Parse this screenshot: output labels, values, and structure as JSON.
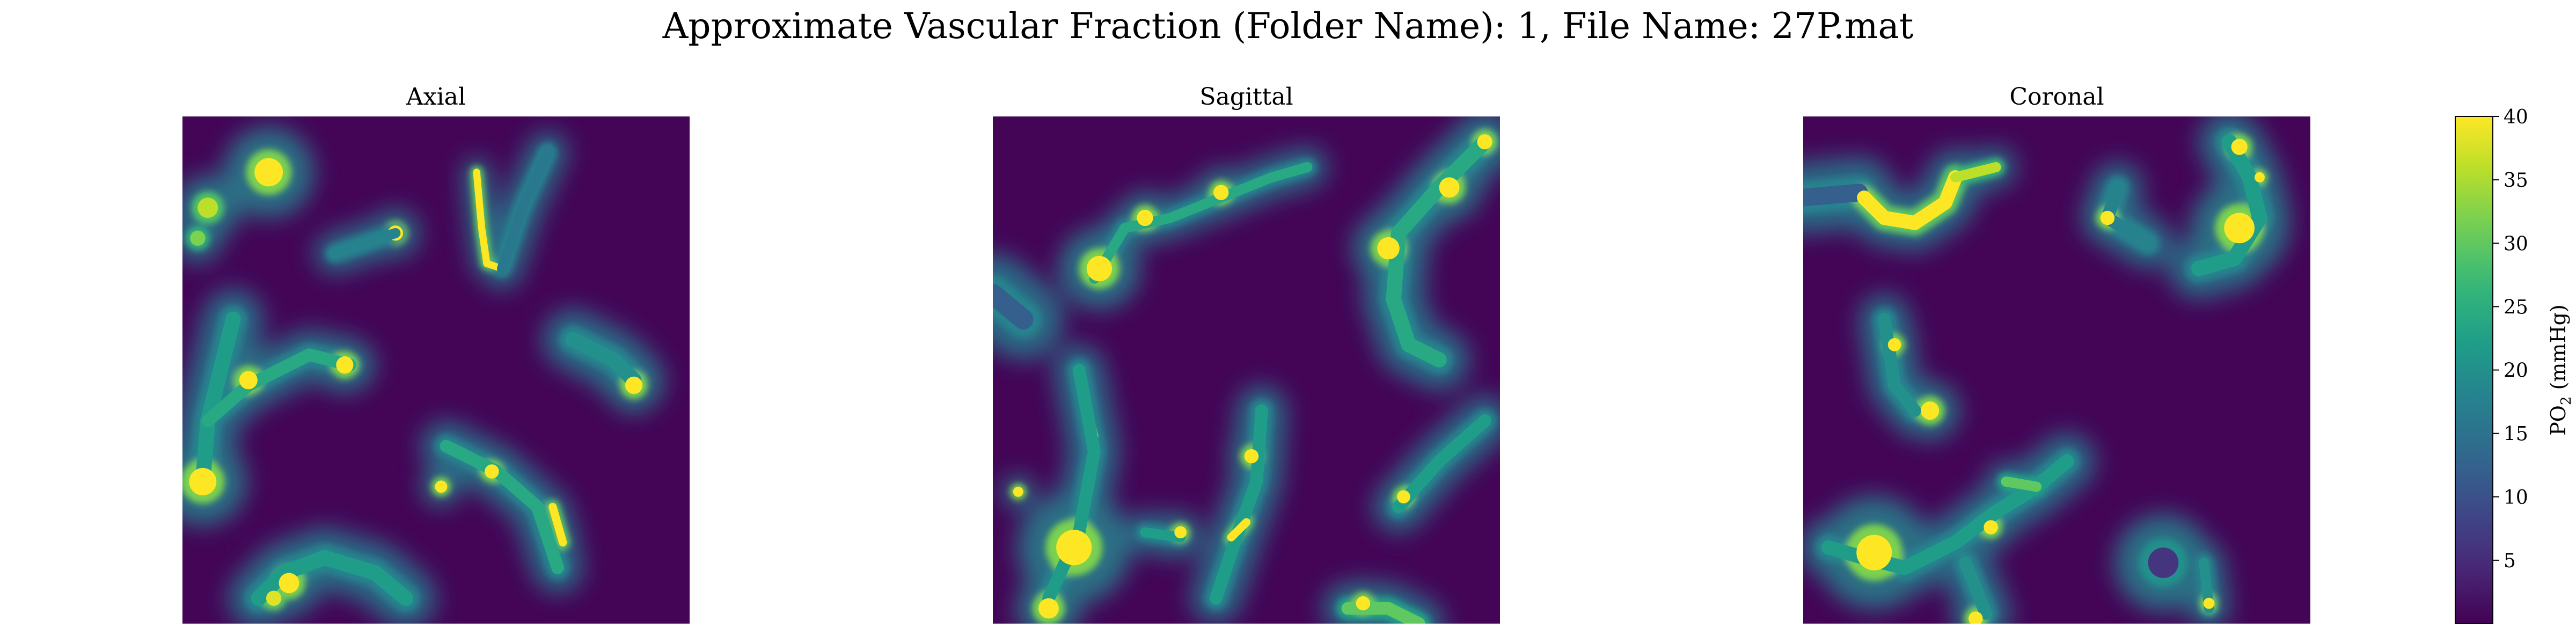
{
  "figure": {
    "suptitle": "Approximate Vascular Fraction (Folder Name): 1, File Name: 27P.mat"
  },
  "chart_data": {
    "type": "heatmap",
    "colormap": "viridis",
    "panels": [
      {
        "title": "Axial",
        "vessels": [
          {
            "type": "blob",
            "x": 0.17,
            "y": 0.11,
            "r": 0.028,
            "v": 40
          },
          {
            "type": "blob",
            "x": 0.05,
            "y": 0.18,
            "r": 0.02,
            "v": 36
          },
          {
            "type": "blob",
            "x": 0.03,
            "y": 0.24,
            "r": 0.015,
            "v": 32
          },
          {
            "type": "blob",
            "x": 0.42,
            "y": 0.23,
            "r": 0.015,
            "v": 40
          },
          {
            "type": "path",
            "pts": [
              [
                0.58,
                0.11
              ],
              [
                0.59,
                0.22
              ],
              [
                0.6,
                0.29
              ],
              [
                0.63,
                0.3
              ]
            ],
            "w": 0.014,
            "v": 40
          },
          {
            "type": "path",
            "pts": [
              [
                0.63,
                0.3
              ],
              [
                0.67,
                0.18
              ],
              [
                0.72,
                0.07
              ]
            ],
            "w": 0.02,
            "v": 16
          },
          {
            "type": "path",
            "pts": [
              [
                0.3,
                0.27
              ],
              [
                0.42,
                0.23
              ]
            ],
            "w": 0.02,
            "v": 18
          },
          {
            "type": "path",
            "pts": [
              [
                0.1,
                0.4
              ],
              [
                0.05,
                0.6
              ],
              [
                0.04,
                0.72
              ]
            ],
            "w": 0.03,
            "v": 22
          },
          {
            "type": "path",
            "pts": [
              [
                0.05,
                0.6
              ],
              [
                0.13,
                0.53
              ],
              [
                0.25,
                0.47
              ],
              [
                0.33,
                0.49
              ]
            ],
            "w": 0.025,
            "v": 24
          },
          {
            "type": "blob",
            "x": 0.13,
            "y": 0.52,
            "r": 0.018,
            "v": 40
          },
          {
            "type": "blob",
            "x": 0.32,
            "y": 0.49,
            "r": 0.017,
            "v": 40
          },
          {
            "type": "blob",
            "x": 0.04,
            "y": 0.72,
            "r": 0.027,
            "v": 40
          },
          {
            "type": "path",
            "pts": [
              [
                0.77,
                0.44
              ],
              [
                0.85,
                0.48
              ],
              [
                0.89,
                0.52
              ]
            ],
            "w": 0.03,
            "v": 20
          },
          {
            "type": "blob",
            "x": 0.89,
            "y": 0.53,
            "r": 0.017,
            "v": 40
          },
          {
            "type": "path",
            "pts": [
              [
                0.52,
                0.65
              ],
              [
                0.62,
                0.7
              ],
              [
                0.7,
                0.77
              ],
              [
                0.74,
                0.89
              ]
            ],
            "w": 0.025,
            "v": 24
          },
          {
            "type": "blob",
            "x": 0.51,
            "y": 0.73,
            "r": 0.012,
            "v": 40
          },
          {
            "type": "blob",
            "x": 0.61,
            "y": 0.7,
            "r": 0.014,
            "v": 40
          },
          {
            "type": "path",
            "pts": [
              [
                0.73,
                0.77
              ],
              [
                0.75,
                0.84
              ]
            ],
            "w": 0.016,
            "v": 40
          },
          {
            "type": "path",
            "pts": [
              [
                0.15,
                0.95
              ],
              [
                0.2,
                0.9
              ],
              [
                0.28,
                0.87
              ],
              [
                0.38,
                0.9
              ],
              [
                0.44,
                0.95
              ]
            ],
            "w": 0.03,
            "v": 22
          },
          {
            "type": "blob",
            "x": 0.21,
            "y": 0.92,
            "r": 0.02,
            "v": 40
          },
          {
            "type": "blob",
            "x": 0.18,
            "y": 0.95,
            "r": 0.015,
            "v": 38
          }
        ]
      },
      {
        "title": "Sagittal",
        "vessels": [
          {
            "type": "path",
            "pts": [
              [
                0.2,
                0.32
              ],
              [
                0.26,
                0.22
              ],
              [
                0.35,
                0.2
              ],
              [
                0.45,
                0.16
              ],
              [
                0.55,
                0.12
              ],
              [
                0.62,
                0.1
              ]
            ],
            "w": 0.02,
            "v": 24
          },
          {
            "type": "blob",
            "x": 0.3,
            "y": 0.2,
            "r": 0.016,
            "v": 40
          },
          {
            "type": "blob",
            "x": 0.45,
            "y": 0.15,
            "r": 0.015,
            "v": 40
          },
          {
            "type": "blob",
            "x": 0.21,
            "y": 0.3,
            "r": 0.025,
            "v": 40
          },
          {
            "type": "path",
            "pts": [
              [
                0.97,
                0.05
              ],
              [
                0.88,
                0.14
              ],
              [
                0.8,
                0.23
              ],
              [
                0.79,
                0.36
              ],
              [
                0.82,
                0.45
              ],
              [
                0.88,
                0.48
              ]
            ],
            "w": 0.03,
            "v": 24
          },
          {
            "type": "blob",
            "x": 0.97,
            "y": 0.05,
            "r": 0.015,
            "v": 40
          },
          {
            "type": "blob",
            "x": 0.9,
            "y": 0.14,
            "r": 0.02,
            "v": 40
          },
          {
            "type": "blob",
            "x": 0.78,
            "y": 0.26,
            "r": 0.022,
            "v": 40
          },
          {
            "type": "path",
            "pts": [
              [
                0.0,
                0.35
              ],
              [
                0.06,
                0.4
              ]
            ],
            "w": 0.04,
            "v": 12
          },
          {
            "type": "path",
            "pts": [
              [
                0.18,
                0.55
              ],
              [
                0.2,
                0.63
              ]
            ],
            "w": 0.016,
            "v": 40
          },
          {
            "type": "path",
            "pts": [
              [
                0.17,
                0.5
              ],
              [
                0.2,
                0.66
              ],
              [
                0.17,
                0.82
              ],
              [
                0.11,
                0.95
              ]
            ],
            "w": 0.025,
            "v": 22
          },
          {
            "type": "blob",
            "x": 0.16,
            "y": 0.85,
            "r": 0.035,
            "v": 40
          },
          {
            "type": "blob",
            "x": 0.11,
            "y": 0.97,
            "r": 0.02,
            "v": 40
          },
          {
            "type": "blob",
            "x": 0.05,
            "y": 0.74,
            "r": 0.01,
            "v": 40
          },
          {
            "type": "path",
            "pts": [
              [
                0.3,
                0.82
              ],
              [
                0.37,
                0.83
              ]
            ],
            "w": 0.02,
            "v": 22
          },
          {
            "type": "blob",
            "x": 0.37,
            "y": 0.82,
            "r": 0.012,
            "v": 40
          },
          {
            "type": "path",
            "pts": [
              [
                0.53,
                0.58
              ],
              [
                0.52,
                0.72
              ],
              [
                0.48,
                0.83
              ],
              [
                0.44,
                0.95
              ]
            ],
            "w": 0.025,
            "v": 22
          },
          {
            "type": "blob",
            "x": 0.51,
            "y": 0.67,
            "r": 0.014,
            "v": 40
          },
          {
            "type": "path",
            "pts": [
              [
                0.47,
                0.83
              ],
              [
                0.5,
                0.8
              ]
            ],
            "w": 0.016,
            "v": 40
          },
          {
            "type": "path",
            "pts": [
              [
                0.97,
                0.6
              ],
              [
                0.88,
                0.68
              ],
              [
                0.8,
                0.77
              ]
            ],
            "w": 0.025,
            "v": 22
          },
          {
            "type": "blob",
            "x": 0.81,
            "y": 0.75,
            "r": 0.013,
            "v": 40
          },
          {
            "type": "path",
            "pts": [
              [
                0.7,
                0.97
              ],
              [
                0.78,
                0.97
              ],
              [
                0.84,
                1.0
              ]
            ],
            "w": 0.025,
            "v": 30
          },
          {
            "type": "blob",
            "x": 0.73,
            "y": 0.96,
            "r": 0.014,
            "v": 40
          }
        ]
      },
      {
        "title": "Coronal",
        "vessels": [
          {
            "type": "path",
            "pts": [
              [
                0.11,
                0.15
              ],
              [
                0.16,
                0.2
              ],
              [
                0.22,
                0.21
              ],
              [
                0.28,
                0.17
              ],
              [
                0.3,
                0.12
              ]
            ],
            "w": 0.028,
            "v": 40
          },
          {
            "type": "path",
            "pts": [
              [
                0.3,
                0.12
              ],
              [
                0.38,
                0.1
              ]
            ],
            "w": 0.02,
            "v": 36
          },
          {
            "type": "path",
            "pts": [
              [
                0.0,
                0.16
              ],
              [
                0.11,
                0.15
              ]
            ],
            "w": 0.035,
            "v": 12
          },
          {
            "type": "blob",
            "x": 0.12,
            "y": 0.16,
            "r": 0.014,
            "v": 40
          },
          {
            "type": "path",
            "pts": [
              [
                0.84,
                0.05
              ],
              [
                0.88,
                0.12
              ],
              [
                0.9,
                0.2
              ],
              [
                0.85,
                0.28
              ],
              [
                0.78,
                0.3
              ]
            ],
            "w": 0.03,
            "v": 22
          },
          {
            "type": "blob",
            "x": 0.86,
            "y": 0.06,
            "r": 0.016,
            "v": 40
          },
          {
            "type": "blob",
            "x": 0.9,
            "y": 0.12,
            "r": 0.01,
            "v": 40
          },
          {
            "type": "blob",
            "x": 0.86,
            "y": 0.22,
            "r": 0.03,
            "v": 40
          },
          {
            "type": "path",
            "pts": [
              [
                0.62,
                0.14
              ],
              [
                0.6,
                0.2
              ],
              [
                0.68,
                0.25
              ]
            ],
            "w": 0.025,
            "v": 18
          },
          {
            "type": "blob",
            "x": 0.6,
            "y": 0.2,
            "r": 0.014,
            "v": 40
          },
          {
            "type": "path",
            "pts": [
              [
                0.16,
                0.4
              ],
              [
                0.18,
                0.53
              ],
              [
                0.22,
                0.58
              ]
            ],
            "w": 0.025,
            "v": 20
          },
          {
            "type": "blob",
            "x": 0.18,
            "y": 0.45,
            "r": 0.013,
            "v": 40
          },
          {
            "type": "blob",
            "x": 0.25,
            "y": 0.58,
            "r": 0.018,
            "v": 40
          },
          {
            "type": "path",
            "pts": [
              [
                0.05,
                0.85
              ],
              [
                0.12,
                0.87
              ],
              [
                0.2,
                0.89
              ],
              [
                0.3,
                0.84
              ],
              [
                0.38,
                0.78
              ],
              [
                0.46,
                0.73
              ],
              [
                0.52,
                0.68
              ]
            ],
            "w": 0.028,
            "v": 22
          },
          {
            "type": "blob",
            "x": 0.14,
            "y": 0.86,
            "r": 0.035,
            "v": 40
          },
          {
            "type": "blob",
            "x": 0.37,
            "y": 0.81,
            "r": 0.014,
            "v": 40
          },
          {
            "type": "path",
            "pts": [
              [
                0.4,
                0.72
              ],
              [
                0.46,
                0.73
              ]
            ],
            "w": 0.02,
            "v": 30
          },
          {
            "type": "path",
            "pts": [
              [
                0.32,
                0.88
              ],
              [
                0.36,
                0.98
              ]
            ],
            "w": 0.025,
            "v": 20
          },
          {
            "type": "blob",
            "x": 0.34,
            "y": 0.99,
            "r": 0.014,
            "v": 40
          },
          {
            "type": "path",
            "pts": [
              [
                0.79,
                0.88
              ],
              [
                0.8,
                0.97
              ]
            ],
            "w": 0.02,
            "v": 20
          },
          {
            "type": "blob",
            "x": 0.8,
            "y": 0.96,
            "r": 0.011,
            "v": 40
          },
          {
            "type": "blob",
            "x": 0.71,
            "y": 0.88,
            "r": 0.03,
            "v": 6
          }
        ]
      }
    ],
    "colorbar": {
      "label_main": "PO",
      "label_sub": "2",
      "label_unit": " (mmHg)",
      "ticks": [
        5,
        10,
        15,
        20,
        25,
        30,
        35,
        40
      ],
      "tick_labels": [
        "5",
        "10",
        "15",
        "20",
        "25",
        "30",
        "35",
        "40"
      ],
      "vmin": 0,
      "vmax": 40
    }
  }
}
